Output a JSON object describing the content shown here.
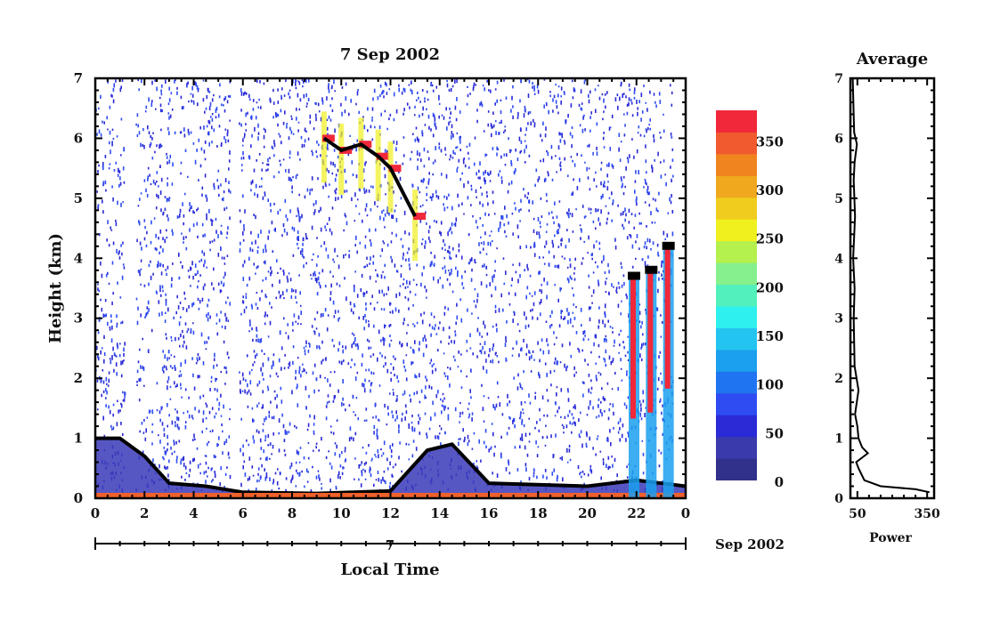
{
  "chart_data": [
    {
      "type": "heatmap",
      "title": "7 Sep 2002",
      "xlabel": "Local Time",
      "ylabel": "Height (km)",
      "xlim": [
        0,
        24
      ],
      "ylim": [
        0,
        7
      ],
      "x_ticks": [
        "0",
        "2",
        "4",
        "6",
        "8",
        "10",
        "12",
        "14",
        "16",
        "18",
        "20",
        "22",
        "0"
      ],
      "y_ticks": [
        "0",
        "1",
        "2",
        "3",
        "4",
        "5",
        "6",
        "7"
      ],
      "date_bar_day": "7",
      "date_bar_month": "Sep 2002",
      "colorbar": {
        "range": [
          0,
          380
        ],
        "ticks": [
          "0",
          "50",
          "100",
          "150",
          "200",
          "250",
          "300",
          "350"
        ],
        "tick_values": [
          0,
          50,
          100,
          150,
          200,
          250,
          300,
          350
        ],
        "colors": [
          "#ffffff",
          "#31318c",
          "#3a3aad",
          "#2a2ad6",
          "#2e4cf2",
          "#1f74f0",
          "#1aa0ee",
          "#23c4f0",
          "#2ef0ee",
          "#52f0bc",
          "#86f08c",
          "#b4f04e",
          "#f0f01e",
          "#f0cc1e",
          "#f0a81e",
          "#f0841e",
          "#f05a2e",
          "#f0283a"
        ]
      },
      "features": {
        "boundary_layer_top_km": [
          {
            "x": 0.0,
            "y": 1.0
          },
          {
            "x": 1.0,
            "y": 1.0
          },
          {
            "x": 2.0,
            "y": 0.7
          },
          {
            "x": 3.0,
            "y": 0.25
          },
          {
            "x": 4.5,
            "y": 0.2
          },
          {
            "x": 6.0,
            "y": 0.1
          },
          {
            "x": 9.0,
            "y": 0.08
          },
          {
            "x": 12.0,
            "y": 0.12
          },
          {
            "x": 13.5,
            "y": 0.8
          },
          {
            "x": 14.5,
            "y": 0.9
          },
          {
            "x": 16.0,
            "y": 0.25
          },
          {
            "x": 20.0,
            "y": 0.2
          },
          {
            "x": 22.0,
            "y": 0.3
          },
          {
            "x": 24.0,
            "y": 0.2
          }
        ],
        "high_cloud_km": [
          {
            "x": 9.3,
            "y": 6.0
          },
          {
            "x": 10.0,
            "y": 5.8
          },
          {
            "x": 10.8,
            "y": 5.9
          },
          {
            "x": 11.5,
            "y": 5.7
          },
          {
            "x": 12.0,
            "y": 5.5
          },
          {
            "x": 13.0,
            "y": 4.7
          }
        ],
        "evening_clouds_km": [
          {
            "x": 21.9,
            "y": 3.7
          },
          {
            "x": 22.6,
            "y": 3.8
          },
          {
            "x": 23.3,
            "y": 4.2
          }
        ]
      }
    },
    {
      "type": "line",
      "title": "Average",
      "xlabel": "Power",
      "x_ticks": [
        "50",
        "350"
      ],
      "y_ticks": [
        "0",
        "1",
        "2",
        "3",
        "4",
        "5",
        "6",
        "7"
      ],
      "xlim": [
        20,
        380
      ],
      "ylim": [
        0,
        7
      ],
      "profile": [
        {
          "power": 360,
          "height": 0.1
        },
        {
          "power": 300,
          "height": 0.15
        },
        {
          "power": 150,
          "height": 0.2
        },
        {
          "power": 80,
          "height": 0.3
        },
        {
          "power": 55,
          "height": 0.5
        },
        {
          "power": 45,
          "height": 0.6
        },
        {
          "power": 95,
          "height": 0.75
        },
        {
          "power": 70,
          "height": 0.85
        },
        {
          "power": 55,
          "height": 1.0
        },
        {
          "power": 50,
          "height": 1.2
        },
        {
          "power": 40,
          "height": 1.4
        },
        {
          "power": 55,
          "height": 1.8
        },
        {
          "power": 38,
          "height": 2.2
        },
        {
          "power": 34,
          "height": 3.0
        },
        {
          "power": 38,
          "height": 3.5
        },
        {
          "power": 32,
          "height": 4.0
        },
        {
          "power": 40,
          "height": 4.7
        },
        {
          "power": 34,
          "height": 5.3
        },
        {
          "power": 38,
          "height": 5.6
        },
        {
          "power": 48,
          "height": 5.9
        },
        {
          "power": 36,
          "height": 6.1
        },
        {
          "power": 30,
          "height": 7.0
        }
      ]
    }
  ]
}
